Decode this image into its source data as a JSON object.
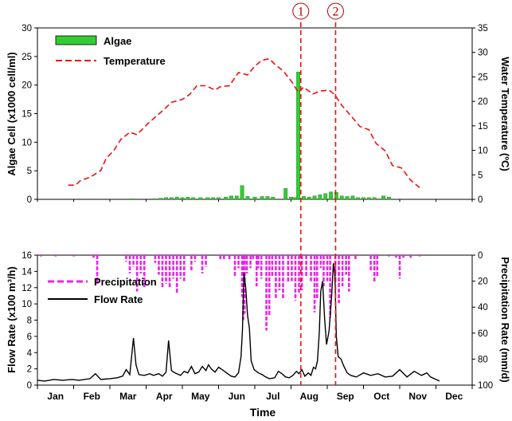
{
  "chart_data": [
    {
      "panel": "top",
      "type": "bar+line",
      "ylabel_left": "Algae Cell (x1000 cell/ml)",
      "ylabel_right": "Water Temperature (ºC)",
      "ylim_left": [
        0,
        30
      ],
      "ylim_right": [
        0,
        35
      ],
      "yticks_left": [
        "0",
        "5",
        "10",
        "15",
        "20",
        "25",
        "30"
      ],
      "yticks_right": [
        "0",
        "5",
        "10",
        "15",
        "20",
        "25",
        "30",
        "35"
      ],
      "legend": {
        "algae": "Algae",
        "temperature": "Temperature"
      },
      "algae": {
        "name": "Algae",
        "color": "#33cc33",
        "points": [
          [
            2.6,
            0.1
          ],
          [
            3.2,
            0.1
          ],
          [
            3.4,
            0.2
          ],
          [
            3.55,
            0.3
          ],
          [
            3.7,
            0.3
          ],
          [
            3.85,
            0.4
          ],
          [
            4.0,
            0.3
          ],
          [
            4.15,
            0.4
          ],
          [
            4.3,
            0.3
          ],
          [
            4.5,
            0.3
          ],
          [
            4.7,
            0.3
          ],
          [
            4.85,
            0.3
          ],
          [
            5.0,
            0.3
          ],
          [
            5.2,
            0.4
          ],
          [
            5.35,
            0.6
          ],
          [
            5.5,
            0.6
          ],
          [
            5.65,
            2.4
          ],
          [
            5.8,
            0.5
          ],
          [
            6.0,
            0.4
          ],
          [
            6.2,
            0.5
          ],
          [
            6.35,
            0.5
          ],
          [
            6.5,
            0.4
          ],
          [
            6.85,
            1.9
          ],
          [
            7.0,
            0.4
          ],
          [
            7.1,
            0.3
          ],
          [
            7.2,
            22.3
          ],
          [
            7.35,
            0.5
          ],
          [
            7.5,
            0.4
          ],
          [
            7.65,
            0.6
          ],
          [
            7.8,
            0.8
          ],
          [
            7.95,
            1.0
          ],
          [
            8.1,
            1.3
          ],
          [
            8.25,
            1.2
          ],
          [
            8.4,
            0.6
          ],
          [
            8.55,
            0.5
          ],
          [
            8.7,
            0.6
          ],
          [
            8.85,
            0.3
          ],
          [
            9.0,
            0.3
          ],
          [
            9.15,
            0.3
          ],
          [
            9.3,
            0.3
          ],
          [
            9.55,
            0.6
          ],
          [
            9.7,
            0.4
          ]
        ]
      },
      "temperature": {
        "name": "Temperature",
        "color": "#ee1111",
        "points": [
          [
            0.85,
            2.9
          ],
          [
            1.05,
            2.9
          ],
          [
            1.2,
            3.9
          ],
          [
            1.45,
            4.5
          ],
          [
            1.75,
            5.9
          ],
          [
            1.9,
            8.4
          ],
          [
            2.1,
            9.9
          ],
          [
            2.3,
            12.2
          ],
          [
            2.55,
            13.7
          ],
          [
            2.75,
            13.2
          ],
          [
            3.05,
            15.5
          ],
          [
            3.3,
            17.1
          ],
          [
            3.5,
            18.4
          ],
          [
            3.7,
            19.8
          ],
          [
            4.0,
            20.4
          ],
          [
            4.2,
            21.4
          ],
          [
            4.4,
            23.2
          ],
          [
            4.65,
            23.2
          ],
          [
            4.9,
            22.3
          ],
          [
            5.05,
            23.0
          ],
          [
            5.3,
            23.2
          ],
          [
            5.55,
            25.9
          ],
          [
            5.8,
            25.4
          ],
          [
            6.0,
            27.2
          ],
          [
            6.2,
            28.4
          ],
          [
            6.4,
            28.7
          ],
          [
            6.55,
            27.6
          ],
          [
            6.8,
            26.1
          ],
          [
            7.05,
            23.7
          ],
          [
            7.2,
            21.8
          ],
          [
            7.35,
            22.9
          ],
          [
            7.6,
            21.5
          ],
          [
            7.8,
            22.1
          ],
          [
            8.05,
            22.3
          ],
          [
            8.2,
            21.4
          ],
          [
            8.4,
            19.2
          ],
          [
            8.65,
            17.1
          ],
          [
            8.9,
            14.9
          ],
          [
            9.15,
            14.2
          ],
          [
            9.35,
            11.4
          ],
          [
            9.6,
            9.9
          ],
          [
            9.8,
            6.9
          ],
          [
            10.05,
            6.4
          ],
          [
            10.3,
            3.9
          ],
          [
            10.55,
            2.4
          ]
        ]
      }
    },
    {
      "panel": "bottom",
      "type": "line",
      "xlabel": "Time",
      "x_months": [
        "Jan",
        "Feb",
        "Mar",
        "Apr",
        "May",
        "Jun",
        "Jul",
        "Aug",
        "Sep",
        "Oct",
        "Nov",
        "Dec"
      ],
      "ylabel_left": "Flow Rate (x100 m³/h)",
      "ylabel_right": "Precipitation Rate (mm/d)",
      "ylim_left": [
        0,
        16
      ],
      "ylim_right_inverted": [
        0,
        100
      ],
      "yticks_left": [
        "0",
        "2",
        "4",
        "6",
        "8",
        "10",
        "12",
        "14",
        "16"
      ],
      "yticks_right": [
        "0",
        "20",
        "40",
        "60",
        "80",
        "100"
      ],
      "legend": {
        "precipitation": "Precipitation",
        "flow": "Flow Rate"
      },
      "precipitation": {
        "name": "Precipitation",
        "color": "#ee22ee",
        "events": [
          [
            0.1,
            1
          ],
          [
            0.5,
            1
          ],
          [
            1.0,
            1
          ],
          [
            1.55,
            2
          ],
          [
            1.65,
            22
          ],
          [
            2.45,
            5
          ],
          [
            2.55,
            14
          ],
          [
            2.65,
            9
          ],
          [
            2.75,
            28
          ],
          [
            2.85,
            14
          ],
          [
            2.95,
            25
          ],
          [
            3.25,
            6
          ],
          [
            3.35,
            15
          ],
          [
            3.45,
            25
          ],
          [
            3.55,
            22
          ],
          [
            3.65,
            25
          ],
          [
            3.75,
            18
          ],
          [
            3.85,
            30
          ],
          [
            3.95,
            18
          ],
          [
            4.05,
            20
          ],
          [
            4.25,
            12
          ],
          [
            4.35,
            5
          ],
          [
            4.55,
            14
          ],
          [
            4.65,
            9
          ],
          [
            5.05,
            4
          ],
          [
            5.15,
            3
          ],
          [
            5.3,
            4
          ],
          [
            5.45,
            17
          ],
          [
            5.55,
            10
          ],
          [
            5.65,
            32
          ],
          [
            5.68,
            50
          ],
          [
            5.72,
            45
          ],
          [
            5.78,
            14
          ],
          [
            5.88,
            10
          ],
          [
            5.95,
            3
          ],
          [
            6.05,
            24
          ],
          [
            6.1,
            10
          ],
          [
            6.18,
            18
          ],
          [
            6.32,
            58
          ],
          [
            6.4,
            46
          ],
          [
            6.48,
            16
          ],
          [
            6.58,
            33
          ],
          [
            6.68,
            27
          ],
          [
            6.78,
            34
          ],
          [
            6.92,
            21
          ],
          [
            7.02,
            20
          ],
          [
            7.12,
            35
          ],
          [
            7.22,
            30
          ],
          [
            7.3,
            27
          ],
          [
            7.42,
            17
          ],
          [
            7.55,
            20
          ],
          [
            7.65,
            44
          ],
          [
            7.72,
            34
          ],
          [
            7.82,
            10
          ],
          [
            7.9,
            24
          ],
          [
            8.0,
            20
          ],
          [
            8.08,
            48
          ],
          [
            8.22,
            21
          ],
          [
            8.32,
            37
          ],
          [
            8.42,
            24
          ],
          [
            8.52,
            15
          ],
          [
            8.6,
            28
          ],
          [
            8.78,
            3
          ],
          [
            9.2,
            12
          ],
          [
            9.3,
            21
          ],
          [
            9.38,
            16
          ],
          [
            9.7,
            1
          ],
          [
            9.9,
            2
          ],
          [
            10.0,
            18
          ],
          [
            10.1,
            2
          ],
          [
            10.3,
            2
          ],
          [
            10.55,
            1
          ]
        ]
      },
      "flow": {
        "name": "Flow Rate",
        "color": "#000000",
        "points": [
          [
            0.0,
            0.6
          ],
          [
            0.2,
            0.5
          ],
          [
            0.45,
            0.7
          ],
          [
            0.7,
            0.6
          ],
          [
            0.95,
            0.7
          ],
          [
            1.15,
            0.6
          ],
          [
            1.45,
            0.8
          ],
          [
            1.6,
            1.4
          ],
          [
            1.75,
            0.7
          ],
          [
            2.0,
            0.8
          ],
          [
            2.2,
            0.9
          ],
          [
            2.35,
            1.1
          ],
          [
            2.45,
            1.9
          ],
          [
            2.55,
            1.3
          ],
          [
            2.65,
            5.8
          ],
          [
            2.72,
            2.5
          ],
          [
            2.8,
            1.3
          ],
          [
            2.95,
            1.2
          ],
          [
            3.1,
            1.4
          ],
          [
            3.2,
            1.2
          ],
          [
            3.35,
            1.4
          ],
          [
            3.45,
            1.1
          ],
          [
            3.55,
            1.6
          ],
          [
            3.62,
            5.5
          ],
          [
            3.7,
            1.8
          ],
          [
            3.8,
            1.5
          ],
          [
            3.95,
            1.2
          ],
          [
            4.05,
            1.7
          ],
          [
            4.15,
            1.5
          ],
          [
            4.25,
            2.3
          ],
          [
            4.35,
            1.4
          ],
          [
            4.45,
            1.6
          ],
          [
            4.55,
            2.3
          ],
          [
            4.65,
            1.8
          ],
          [
            4.72,
            2.5
          ],
          [
            4.8,
            2.0
          ],
          [
            4.9,
            1.6
          ],
          [
            5.0,
            2.2
          ],
          [
            5.1,
            1.9
          ],
          [
            5.25,
            1.4
          ],
          [
            5.35,
            1.1
          ],
          [
            5.45,
            1.0
          ],
          [
            5.55,
            1.5
          ],
          [
            5.62,
            3.5
          ],
          [
            5.66,
            6.8
          ],
          [
            5.7,
            13.8
          ],
          [
            5.75,
            12.0
          ],
          [
            5.8,
            8.6
          ],
          [
            5.85,
            7.0
          ],
          [
            5.9,
            3.0
          ],
          [
            5.98,
            1.9
          ],
          [
            6.1,
            1.5
          ],
          [
            6.2,
            1.3
          ],
          [
            6.3,
            1.0
          ],
          [
            6.4,
            0.8
          ],
          [
            6.55,
            0.9
          ],
          [
            6.65,
            1.7
          ],
          [
            6.75,
            1.4
          ],
          [
            6.85,
            1.0
          ],
          [
            6.95,
            0.9
          ],
          [
            7.05,
            1.2
          ],
          [
            7.15,
            1.7
          ],
          [
            7.22,
            1.4
          ],
          [
            7.3,
            1.9
          ],
          [
            7.38,
            1.1
          ],
          [
            7.48,
            1.5
          ],
          [
            7.55,
            1.2
          ],
          [
            7.62,
            2.2
          ],
          [
            7.68,
            2.0
          ],
          [
            7.73,
            3.0
          ],
          [
            7.78,
            6.5
          ],
          [
            7.82,
            11.5
          ],
          [
            7.87,
            12.8
          ],
          [
            7.93,
            8.0
          ],
          [
            7.98,
            5.0
          ],
          [
            8.05,
            6.7
          ],
          [
            8.12,
            11.0
          ],
          [
            8.17,
            15.0
          ],
          [
            8.21,
            13.5
          ],
          [
            8.25,
            6.0
          ],
          [
            8.3,
            3.5
          ],
          [
            8.38,
            3.2
          ],
          [
            8.45,
            2.4
          ],
          [
            8.55,
            1.5
          ],
          [
            8.65,
            1.2
          ],
          [
            8.8,
            1.0
          ],
          [
            9.0,
            1.5
          ],
          [
            9.2,
            1.2
          ],
          [
            9.4,
            1.4
          ],
          [
            9.6,
            1.0
          ],
          [
            9.8,
            1.1
          ],
          [
            10.0,
            1.9
          ],
          [
            10.2,
            1.0
          ],
          [
            10.4,
            1.7
          ],
          [
            10.6,
            1.2
          ],
          [
            10.75,
            1.5
          ],
          [
            10.85,
            1.0
          ],
          [
            11.0,
            0.7
          ],
          [
            11.1,
            0.5
          ]
        ]
      },
      "markers": [
        {
          "label": "1",
          "x": 7.27
        },
        {
          "label": "2",
          "x": 8.23
        }
      ]
    }
  ]
}
